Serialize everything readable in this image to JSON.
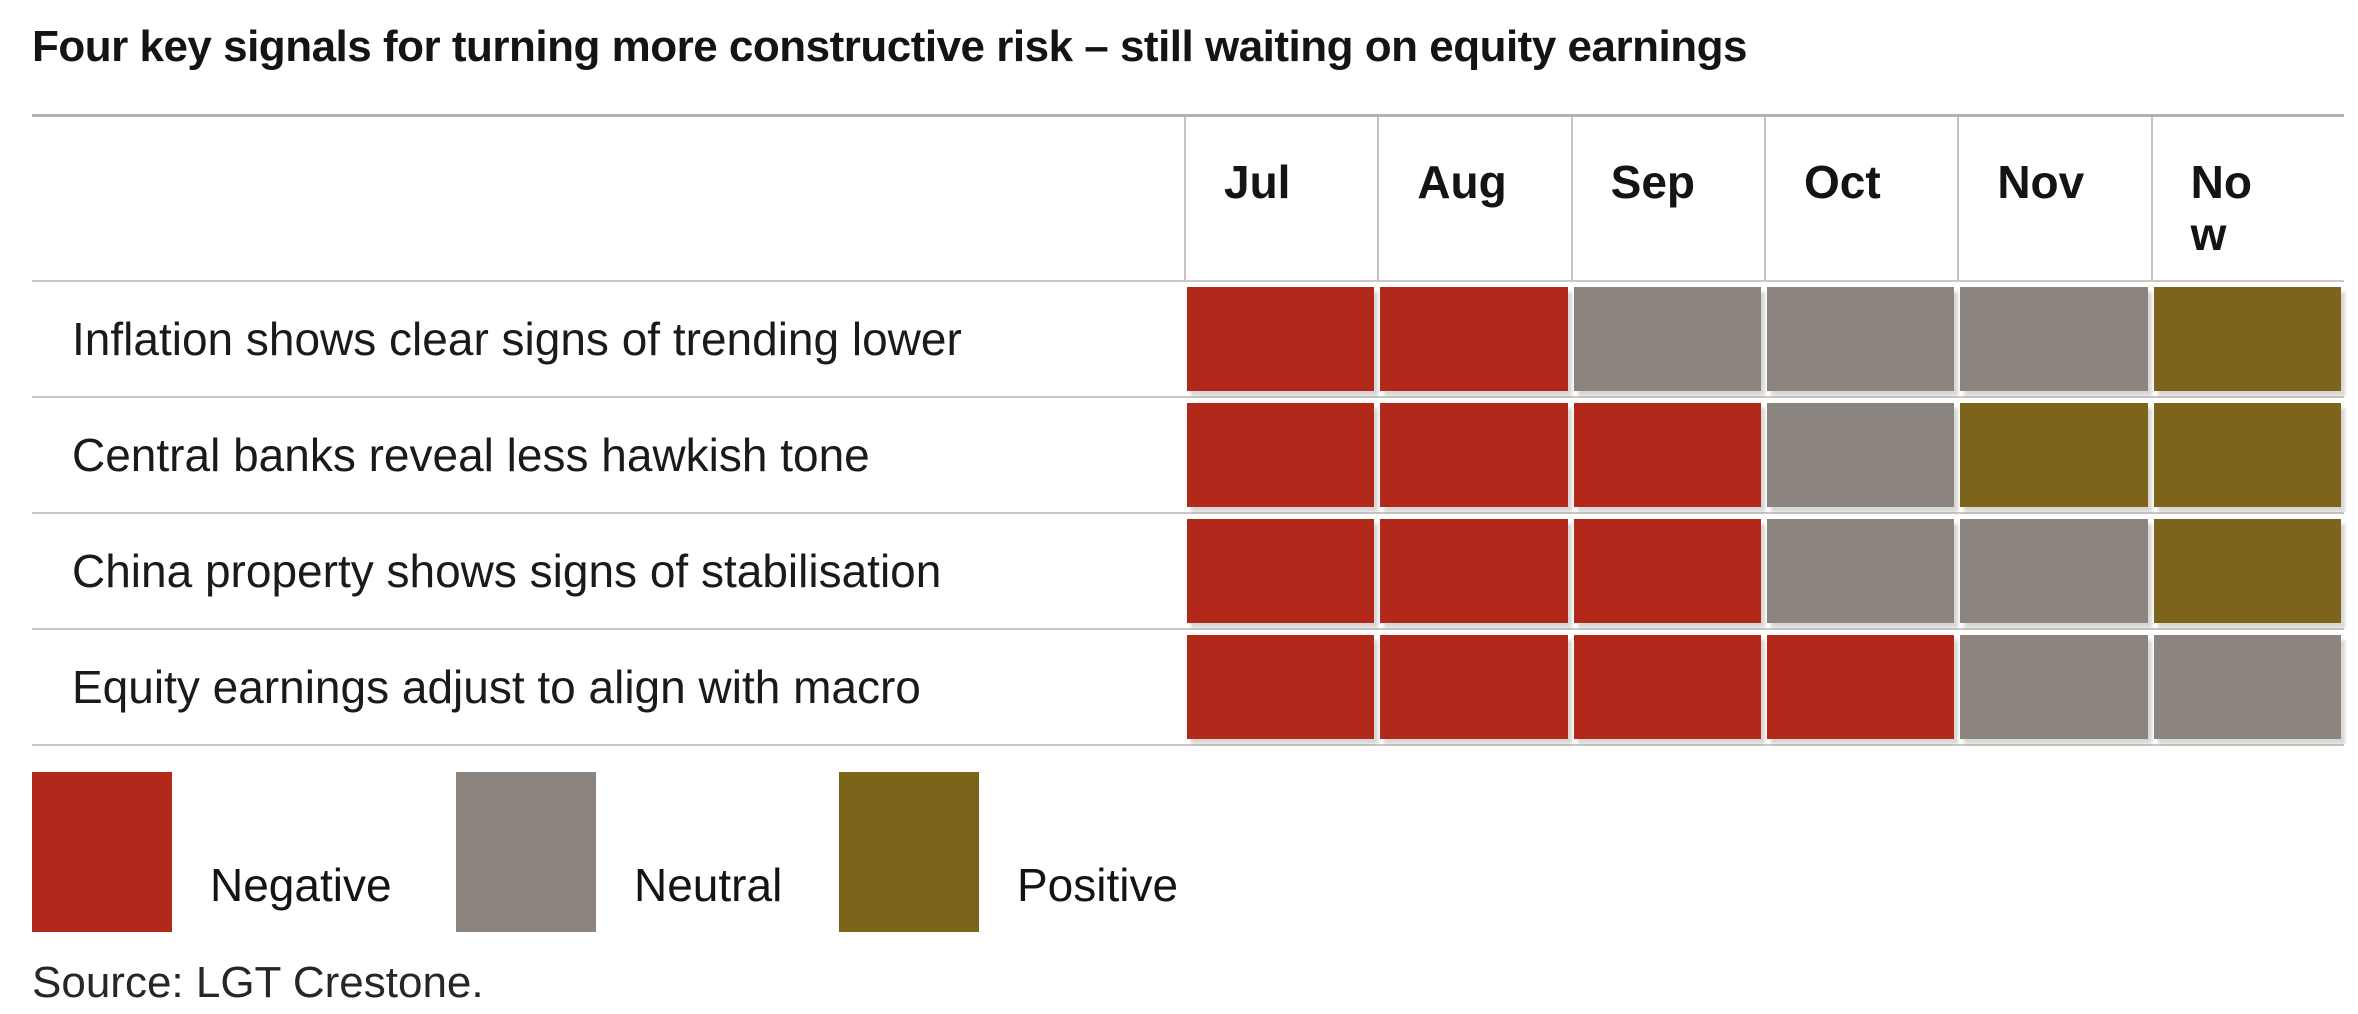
{
  "chart_data": {
    "type": "heatmap",
    "title": "Four key signals for turning more constructive risk – still waiting on equity earnings",
    "columns": [
      "Jul",
      "Aug",
      "Sep",
      "Oct",
      "Nov",
      "Now"
    ],
    "rows": [
      {
        "label": "Inflation shows clear signs of trending lower",
        "statuses": [
          "negative",
          "negative",
          "neutral",
          "neutral",
          "neutral",
          "positive"
        ]
      },
      {
        "label": "Central banks reveal less hawkish tone",
        "statuses": [
          "negative",
          "negative",
          "negative",
          "neutral",
          "positive",
          "positive"
        ]
      },
      {
        "label": "China property shows signs of stabilisation",
        "statuses": [
          "negative",
          "negative",
          "negative",
          "neutral",
          "neutral",
          "positive"
        ]
      },
      {
        "label": "Equity earnings adjust to align with macro",
        "statuses": [
          "negative",
          "negative",
          "negative",
          "negative",
          "neutral",
          "neutral"
        ]
      }
    ],
    "legend": [
      {
        "key": "negative",
        "label": "Negative",
        "color": "#B2281A"
      },
      {
        "key": "neutral",
        "label": "Neutral",
        "color": "#8C857F"
      },
      {
        "key": "positive",
        "label": "Positive",
        "color": "#7C651B"
      }
    ],
    "legend_position": "bottom",
    "grid": true,
    "source": "Source: LGT Crestone."
  }
}
